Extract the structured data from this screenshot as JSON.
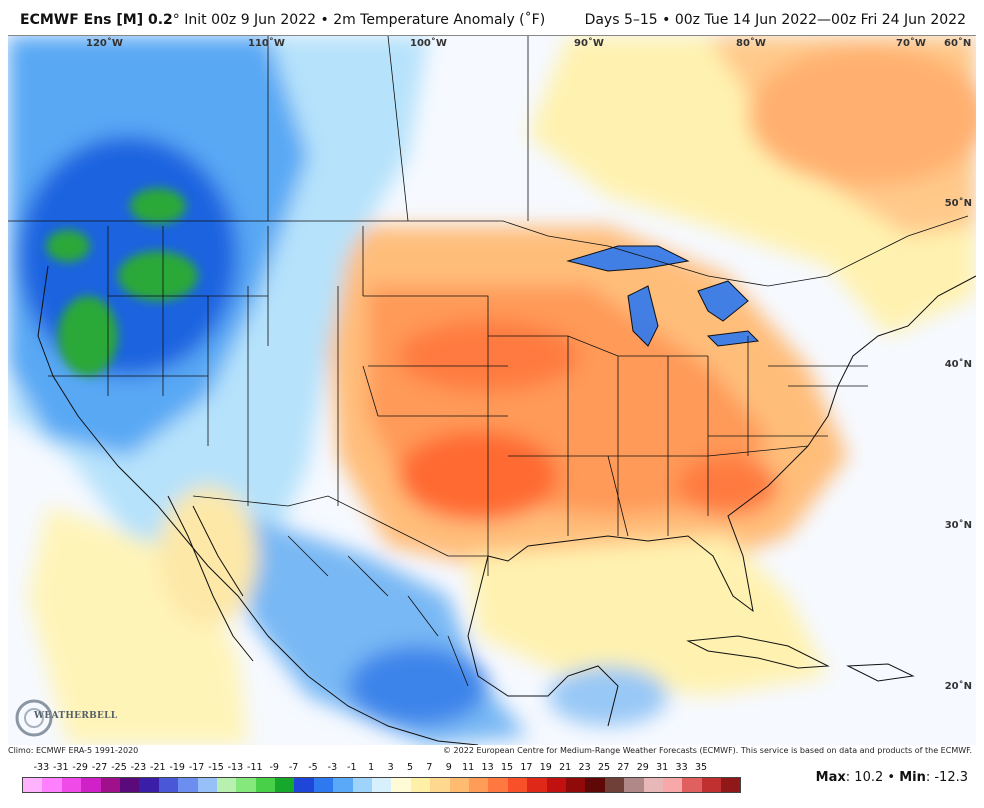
{
  "header": {
    "model": "ECMWF Ens [M] 0.2",
    "degree": "°",
    "init": "Init 00z 9 Jun 2022",
    "separator": "•",
    "variable": "2m Temperature Anomaly (˚F)",
    "valid": "Days 5–15 • 00z Tue 14 Jun 2022—00z Fri 24 Jun 2022"
  },
  "longitude_labels": [
    "120˚W",
    "110˚W",
    "100˚W",
    "90˚W",
    "80˚W",
    "70˚W",
    "60˚N"
  ],
  "latitude_labels": [
    "50˚N",
    "40˚N",
    "30˚N",
    "20˚N"
  ],
  "footer": {
    "climo": "Climo: ECMWF ERA-5 1991-2020",
    "copyright": "© 2022 European Centre for Medium-Range Weather Forecasts (ECMWF). This service is based on data and products of the ECMWF."
  },
  "logo": {
    "text": "WEATHERBELL"
  },
  "colorbar": {
    "ticks": [
      "-33",
      "-31",
      "-29",
      "-27",
      "-25",
      "-23",
      "-21",
      "-19",
      "-17",
      "-15",
      "-13",
      "-11",
      "-9",
      "-7",
      "-5",
      "-3",
      "-1",
      "1",
      "3",
      "5",
      "7",
      "9",
      "11",
      "13",
      "15",
      "17",
      "19",
      "21",
      "23",
      "25",
      "27",
      "29",
      "31",
      "33",
      "35"
    ],
    "colors": [
      "#ffb3ff",
      "#ff80ff",
      "#f04ae8",
      "#d020c8",
      "#a0108a",
      "#5a0a7a",
      "#3a1ea8",
      "#4a58d8",
      "#6c8ef0",
      "#98c0f8",
      "#b8f0b0",
      "#84e87c",
      "#48d048",
      "#16a82a",
      "#1e46d8",
      "#2e78f0",
      "#5aa8f8",
      "#9ed4fc",
      "#d8f0fc",
      "#fffbd6",
      "#fff0a8",
      "#ffd890",
      "#ffbc70",
      "#ff9c58",
      "#ff7840",
      "#f85028",
      "#e02818",
      "#c01010",
      "#900a0a",
      "#600808",
      "#6e4038",
      "#b08888",
      "#e8b8b8",
      "#f8a8a8",
      "#e06060",
      "#c03030",
      "#901818"
    ]
  },
  "stats": {
    "max_label": "Max",
    "max": "10.2",
    "min_label": "Min",
    "min": "-12.3"
  },
  "legend_colors": {
    "cold_strong": "#1e64e0",
    "cold": "#58a8f4",
    "cool": "#b6e2fb",
    "neutral": "#f6f9ff",
    "mild": "#fff2b0",
    "warm": "#ffbd7a",
    "hot": "#ff8a4a",
    "hotter": "#ff6a30",
    "extreme_cold": "#2aa838"
  }
}
